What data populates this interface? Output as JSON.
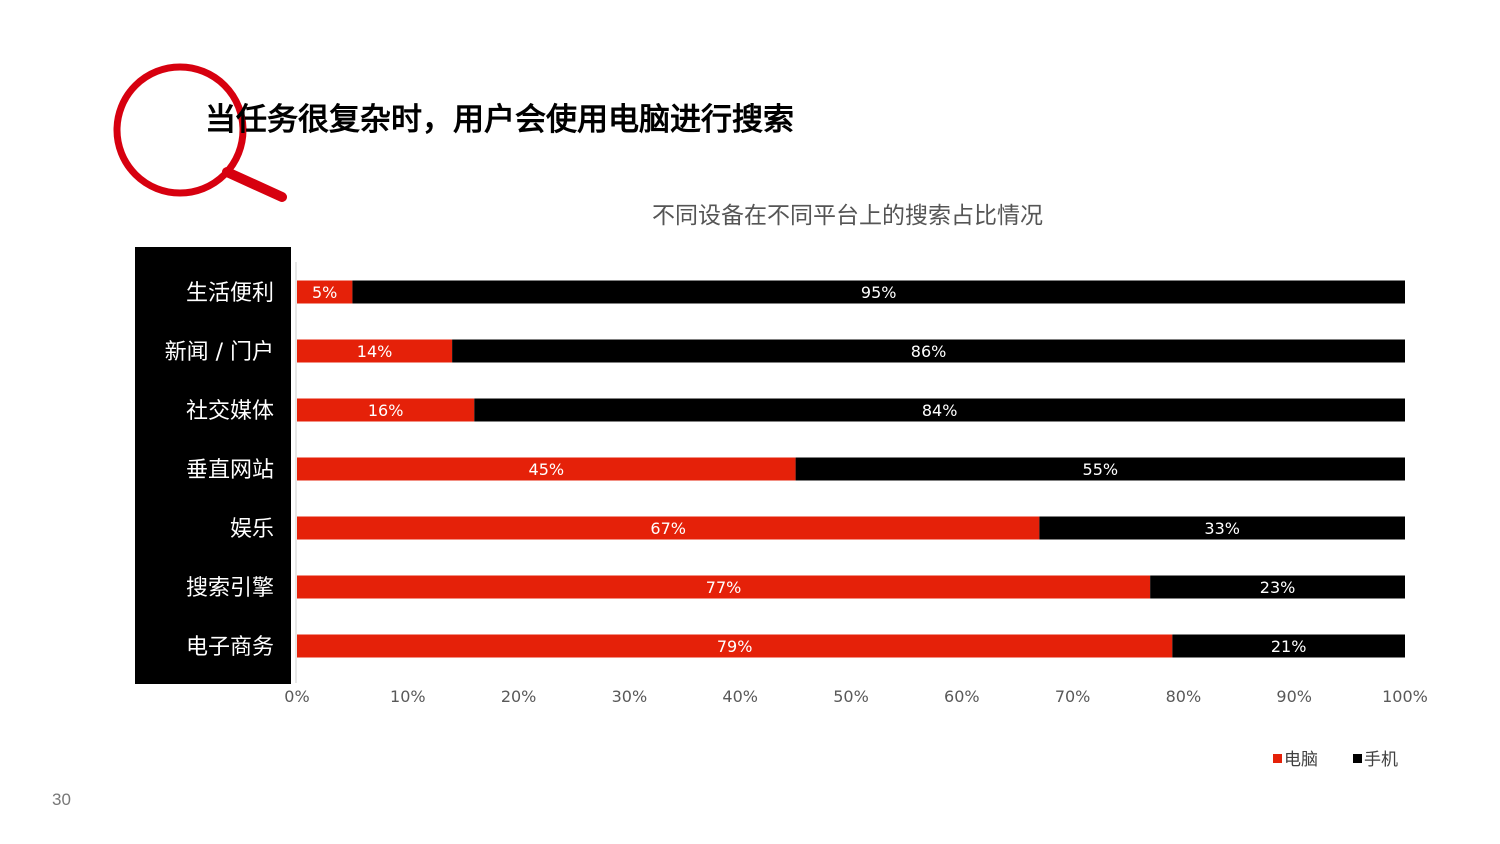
{
  "slide": {
    "title": "当任务很复杂时，用户会使用电脑进行搜索",
    "page_number": "30",
    "accent_color": "#d7000f"
  },
  "icons": {
    "magnifier": "magnifying-glass-icon"
  },
  "chart_data": {
    "type": "bar",
    "orientation": "horizontal",
    "stacked": "percent",
    "title": "不同设备在不同平台上的搜索占比情况",
    "categories": [
      "生活便利",
      "新闻 / 门户",
      "社交媒体",
      "垂直网站",
      "娱乐",
      "搜索引擎",
      "电子商务"
    ],
    "series": [
      {
        "name": "电脑",
        "values": [
          5,
          14,
          16,
          45,
          67,
          77,
          79
        ],
        "labels": [
          "5%",
          "14%",
          "16%",
          "45%",
          "67%",
          "77%",
          "79%"
        ],
        "color": "#e52109"
      },
      {
        "name": "手机",
        "values": [
          95,
          86,
          84,
          55,
          33,
          23,
          21
        ],
        "labels": [
          "95%",
          "86%",
          "84%",
          "55%",
          "33%",
          "23%",
          "21%"
        ],
        "color": "#000000"
      }
    ],
    "xlim": [
      0,
      100
    ],
    "xticks": [
      "0%",
      "10%",
      "20%",
      "30%",
      "40%",
      "50%",
      "60%",
      "70%",
      "80%",
      "90%",
      "100%"
    ],
    "grid": false,
    "legend_position": "bottom-right"
  }
}
